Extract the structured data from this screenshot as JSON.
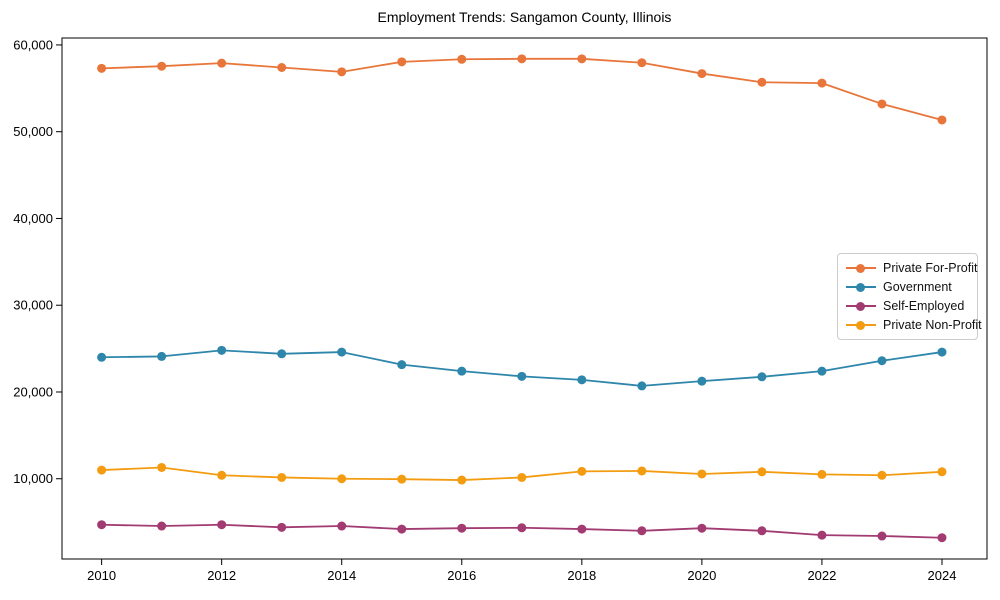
{
  "figure": {
    "background": "#ffffff",
    "text_color": "#000000",
    "spine_color": "#000000"
  },
  "chart_data": {
    "type": "line",
    "title": "Employment Trends: Sangamon County, Illinois",
    "xlabel": "",
    "ylabel": "",
    "grid": false,
    "marker": "o",
    "x": [
      2010,
      2011,
      2012,
      2013,
      2014,
      2015,
      2016,
      2017,
      2018,
      2019,
      2020,
      2021,
      2022,
      2023,
      2024
    ],
    "series": [
      {
        "name": "Private For-Profit",
        "color": "#E8763A",
        "values": [
          57300,
          57550,
          57900,
          57400,
          56900,
          58050,
          58350,
          58400,
          58400,
          57950,
          56700,
          55700,
          55600,
          53200,
          51350
        ]
      },
      {
        "name": "Government",
        "color": "#2E86AB",
        "values": [
          24000,
          24100,
          24800,
          24400,
          24600,
          23150,
          22400,
          21800,
          21400,
          20700,
          21250,
          21750,
          22400,
          23600,
          24600
        ]
      },
      {
        "name": "Self-Employed",
        "color": "#A23B72",
        "values": [
          4700,
          4550,
          4700,
          4400,
          4550,
          4200,
          4300,
          4350,
          4200,
          4000,
          4300,
          4000,
          3500,
          3400,
          3200
        ]
      },
      {
        "name": "Private Non-Profit",
        "color": "#F39C12",
        "values": [
          11000,
          11300,
          10400,
          10150,
          10000,
          9950,
          9850,
          10150,
          10850,
          10900,
          10550,
          10800,
          10500,
          10400,
          10800
        ]
      }
    ],
    "xlim": [
      2009.34,
      2024.75
    ],
    "ylim": [
      750,
      60800
    ],
    "x_ticks": [
      2010,
      2012,
      2014,
      2016,
      2018,
      2020,
      2022,
      2024
    ],
    "x_tick_labels": [
      "2010",
      "2012",
      "2014",
      "2016",
      "2018",
      "2020",
      "2022",
      "2024"
    ],
    "y_ticks": [
      10000,
      20000,
      30000,
      40000,
      50000,
      60000
    ],
    "y_tick_labels": [
      "10,000",
      "20,000",
      "30,000",
      "40,000",
      "50,000",
      "60,000"
    ],
    "legend": {
      "position": "center right",
      "labels": [
        "Private For-Profit",
        "Government",
        "Self-Employed",
        "Private Non-Profit"
      ]
    }
  }
}
